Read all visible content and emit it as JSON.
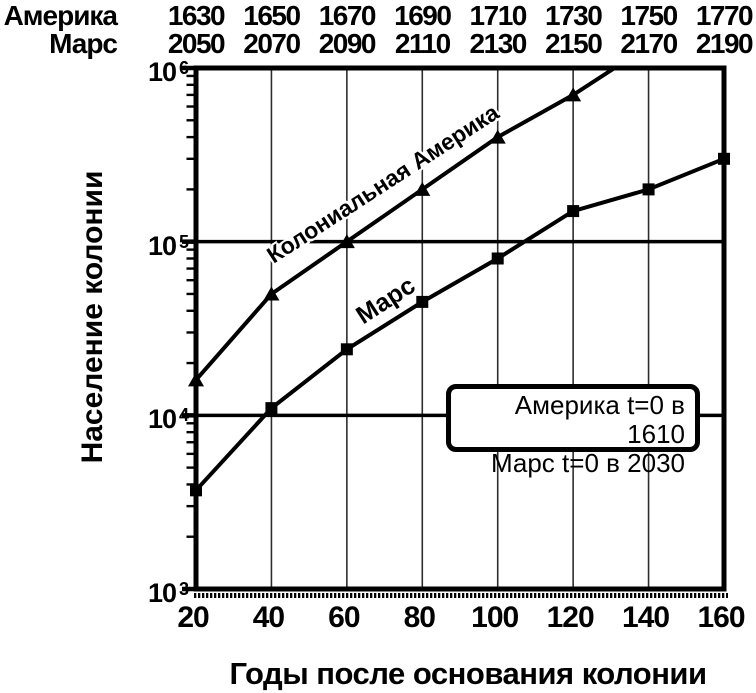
{
  "page": {
    "background": "#ffffff",
    "ink": "#000000",
    "grid_color": "#2e2e2e"
  },
  "header": {
    "row1_label": "Америка",
    "row2_label": "Марс",
    "row1_years": [
      "1630",
      "1650",
      "1670",
      "1690",
      "1710",
      "1730",
      "1750",
      "1770"
    ],
    "row2_years": [
      "2050",
      "2070",
      "2090",
      "2110",
      "2130",
      "2150",
      "2170",
      "2190"
    ]
  },
  "chart_data": {
    "type": "line",
    "title": "",
    "xlabel": "Годы после основания колонии",
    "ylabel": "Население колонии",
    "x_scale": "linear",
    "y_scale": "log",
    "xlim": [
      20,
      160
    ],
    "ylim": [
      1000,
      1000000
    ],
    "x_ticks": [
      "20",
      "40",
      "60",
      "80",
      "100",
      "120",
      "140",
      "160"
    ],
    "x_tick_values": [
      20,
      40,
      60,
      80,
      100,
      120,
      140,
      160
    ],
    "x_gridlines": [
      40,
      60,
      80,
      100,
      120,
      140
    ],
    "y_gridlines": [
      100000,
      10000
    ],
    "y_ticks": [
      {
        "base": "10",
        "exp": "6",
        "value": 1000000
      },
      {
        "base": "10",
        "exp": "5",
        "value": 100000
      },
      {
        "base": "10",
        "exp": "4",
        "value": 10000
      },
      {
        "base": "10",
        "exp": "3",
        "value": 1000
      }
    ],
    "grid": true,
    "legend_position": "inside-right-middle",
    "series": [
      {
        "name": "Колониальная Америка",
        "label": "Колониальная Америка",
        "marker": "triangle",
        "color": "#000000",
        "x": [
          20,
          40,
          60,
          80,
          100,
          120
        ],
        "values": [
          16000,
          50000,
          100000,
          200000,
          400000,
          700000
        ],
        "line_continues_to": {
          "x": 131,
          "value": 1000000
        }
      },
      {
        "name": "Марс",
        "label": "Марс",
        "marker": "square",
        "color": "#000000",
        "x": [
          20,
          40,
          60,
          80,
          100,
          120,
          140,
          160
        ],
        "values": [
          3700,
          11000,
          24000,
          45000,
          80000,
          150000,
          200000,
          300000
        ]
      }
    ],
    "annotation": {
      "lines": [
        "Америка t=0 в 1610",
        "Марс t=0 в 2030"
      ]
    }
  }
}
